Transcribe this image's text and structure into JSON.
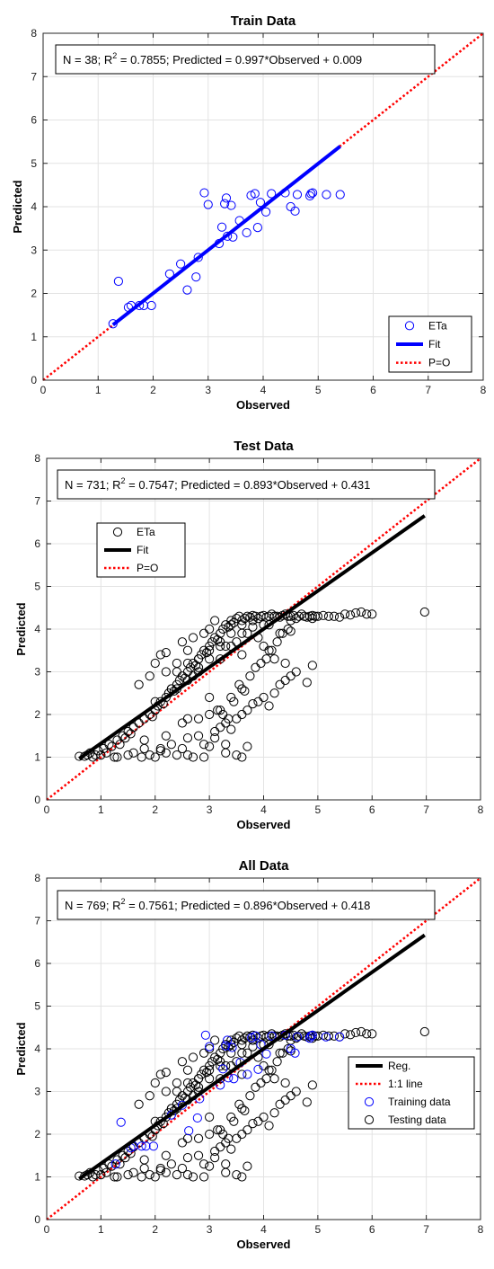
{
  "chart_data": [
    {
      "type": "scatter",
      "title": "Train Data",
      "xlabel": "Observed",
      "ylabel": "Predicted",
      "xlim": [
        0,
        8
      ],
      "ylim": [
        0,
        8
      ],
      "xticks": [
        "0",
        "1",
        "2",
        "3",
        "4",
        "5",
        "6",
        "7",
        "8"
      ],
      "yticks": [
        "0",
        "1",
        "2",
        "3",
        "4",
        "5",
        "6",
        "7",
        "8"
      ],
      "grid": true,
      "legend_position": "bottom-right",
      "stats": {
        "n_text": "N = 38;",
        "r_text": "R",
        "r_sup": "2",
        "r_value": " = 0.7855;",
        "eq_text": "Predicted = 0.997*Observed + 0.009"
      },
      "colors": {
        "points": "#0000ff",
        "fit": "#0000ff",
        "ref": "#ff0000"
      },
      "legend": [
        "ETa",
        "Fit",
        "P=O"
      ],
      "fit": {
        "slope": 0.997,
        "intercept": 0.009,
        "x_range": [
          1.27,
          5.4
        ]
      },
      "series": [
        {
          "name": "ETa",
          "x": [
            1.27,
            1.37,
            1.55,
            1.6,
            1.75,
            1.83,
            1.97,
            2.3,
            2.5,
            2.62,
            2.78,
            2.82,
            2.93,
            3.0,
            3.2,
            3.25,
            3.3,
            3.33,
            3.35,
            3.42,
            3.45,
            3.57,
            3.7,
            3.78,
            3.85,
            3.9,
            3.95,
            4.05,
            4.15,
            4.4,
            4.5,
            4.58,
            4.62,
            4.85,
            4.87,
            4.9,
            5.15,
            5.4
          ],
          "y": [
            1.3,
            2.28,
            1.68,
            1.72,
            1.72,
            1.72,
            1.72,
            2.45,
            2.68,
            2.08,
            2.38,
            2.83,
            4.32,
            4.05,
            3.15,
            3.53,
            4.07,
            4.2,
            3.32,
            4.03,
            3.3,
            3.68,
            3.4,
            4.26,
            4.3,
            3.52,
            4.1,
            3.88,
            4.3,
            4.32,
            4.0,
            3.9,
            4.28,
            4.25,
            4.3,
            4.32,
            4.28,
            4.28
          ]
        }
      ]
    },
    {
      "type": "scatter",
      "title": "Test Data",
      "xlabel": "Observed",
      "ylabel": "Predicted",
      "xlim": [
        0,
        8
      ],
      "ylim": [
        0,
        8
      ],
      "xticks": [
        "0",
        "1",
        "2",
        "3",
        "4",
        "5",
        "6",
        "7",
        "8"
      ],
      "yticks": [
        "0",
        "1",
        "2",
        "3",
        "4",
        "5",
        "6",
        "7",
        "8"
      ],
      "grid": true,
      "legend_position": "top-left",
      "stats": {
        "n_text": "N = 731;",
        "r_text": "R",
        "r_sup": "2",
        "r_value": " = 0.7547;",
        "eq_text": "Predicted = 0.893*Observed + 0.431"
      },
      "colors": {
        "points": "#000000",
        "fit": "#000000",
        "ref": "#ff0000"
      },
      "legend": [
        "ETa",
        "Fit",
        "P=O"
      ],
      "fit": {
        "slope": 0.893,
        "intercept": 0.431,
        "x_range": [
          0.6,
          6.97
        ]
      },
      "series": [
        {
          "name": "ETa",
          "x": [
            0.6,
            0.7,
            0.75,
            0.8,
            0.85,
            0.9,
            0.95,
            1.0,
            1.05,
            1.1,
            1.15,
            1.2,
            1.25,
            1.3,
            1.35,
            1.4,
            1.45,
            1.5,
            1.55,
            1.6,
            1.7,
            1.8,
            1.9,
            1.95,
            2.0,
            2.05,
            2.1,
            2.15,
            2.2,
            2.25,
            2.3,
            2.35,
            2.4,
            2.45,
            2.5,
            2.55,
            2.6,
            2.65,
            2.7,
            2.75,
            2.8,
            2.85,
            2.9,
            2.95,
            3.0,
            3.05,
            3.1,
            3.15,
            3.2,
            3.25,
            3.3,
            3.35,
            3.4,
            3.45,
            3.5,
            3.55,
            3.6,
            3.65,
            3.7,
            3.75,
            3.8,
            3.85,
            3.9,
            3.95,
            4.0,
            4.05,
            4.1,
            4.15,
            4.2,
            4.25,
            4.3,
            4.35,
            4.4,
            4.45,
            4.5,
            4.55,
            4.6,
            4.65,
            4.7,
            4.75,
            4.8,
            4.85,
            4.9,
            4.95,
            5.0,
            5.1,
            5.2,
            5.3,
            5.4,
            5.5,
            5.6,
            5.7,
            5.8,
            5.9,
            6.0,
            6.97,
            1.3,
            1.5,
            1.6,
            1.75,
            1.8,
            1.9,
            2.0,
            2.1,
            2.2,
            2.3,
            2.4,
            2.5,
            2.6,
            2.7,
            2.8,
            2.9,
            3.0,
            3.1,
            3.2,
            3.3,
            3.4,
            3.5,
            3.6,
            3.7,
            3.8,
            3.9,
            4.0,
            4.1,
            4.2,
            4.3,
            4.4,
            4.5,
            4.6,
            4.8,
            4.9,
            2.2,
            2.4,
            2.5,
            2.6,
            2.7,
            2.9,
            3.0,
            3.1,
            3.2,
            3.3,
            3.4,
            3.5,
            3.6,
            3.7,
            3.8,
            3.9,
            4.0,
            4.1,
            4.2,
            4.3,
            4.4,
            4.5,
            2.0,
            2.3,
            2.7,
            2.8,
            3.0,
            3.15,
            3.25,
            3.35,
            3.45,
            3.55,
            3.65,
            3.75,
            3.85,
            3.95,
            4.05,
            4.15,
            4.25,
            4.35,
            4.45,
            1.7,
            1.9,
            2.0,
            2.1,
            2.2,
            2.4,
            2.6,
            2.8,
            3.0,
            3.2,
            3.4,
            3.6,
            3.8,
            4.0,
            4.2,
            1.8,
            2.2,
            2.5,
            2.6,
            2.8,
            3.0,
            3.2,
            3.4,
            3.6,
            2.0,
            2.4,
            2.6,
            2.8,
            3.0,
            3.2,
            3.4,
            3.6,
            3.8,
            4.1,
            4.5,
            4.9,
            3.1,
            3.3,
            3.5,
            3.7,
            2.1,
            2.6,
            2.9,
            3.3,
            3.6
          ],
          "y": [
            1.02,
            1.02,
            1.05,
            1.1,
            1.0,
            1.05,
            1.15,
            1.05,
            1.2,
            1.1,
            1.3,
            1.25,
            1.0,
            1.4,
            1.3,
            1.5,
            1.45,
            1.6,
            1.55,
            1.7,
            1.8,
            1.9,
            2.0,
            1.95,
            2.1,
            2.2,
            2.3,
            2.25,
            2.4,
            2.5,
            2.6,
            2.55,
            2.7,
            2.8,
            2.9,
            2.85,
            3.0,
            3.1,
            3.2,
            3.15,
            3.3,
            3.4,
            3.5,
            3.45,
            3.6,
            3.7,
            3.8,
            3.75,
            3.9,
            4.0,
            4.1,
            4.05,
            4.2,
            4.15,
            4.25,
            4.3,
            4.2,
            4.25,
            4.3,
            4.28,
            4.32,
            4.3,
            4.25,
            4.3,
            4.32,
            4.28,
            4.3,
            4.35,
            4.3,
            4.3,
            4.28,
            4.32,
            4.35,
            4.3,
            4.3,
            4.32,
            4.25,
            4.3,
            4.35,
            4.3,
            4.28,
            4.3,
            4.32,
            4.3,
            4.3,
            4.32,
            4.3,
            4.3,
            4.28,
            4.35,
            4.33,
            4.38,
            4.4,
            4.35,
            4.35,
            4.4,
            1.0,
            1.05,
            1.1,
            1.0,
            1.2,
            1.05,
            1.0,
            1.15,
            1.1,
            1.3,
            1.05,
            1.2,
            1.45,
            1.0,
            1.5,
            1.3,
            1.25,
            1.6,
            1.7,
            1.8,
            1.65,
            1.9,
            2.0,
            2.1,
            2.25,
            2.3,
            2.4,
            2.2,
            2.5,
            2.7,
            2.8,
            2.9,
            3.0,
            2.75,
            3.15,
            3.45,
            3.2,
            3.7,
            3.5,
            3.8,
            3.9,
            4.0,
            4.2,
            3.3,
            3.6,
            4.1,
            3.7,
            3.4,
            3.9,
            4.2,
            3.8,
            3.6,
            3.5,
            3.3,
            3.9,
            3.2,
            3.95,
            2.3,
            2.6,
            2.9,
            3.0,
            2.4,
            2.1,
            2.0,
            1.9,
            2.3,
            2.7,
            2.55,
            2.9,
            3.1,
            3.2,
            3.3,
            3.5,
            3.7,
            3.9,
            4.0,
            2.7,
            2.9,
            3.2,
            3.4,
            3.0,
            2.6,
            2.8,
            3.1,
            3.3,
            3.6,
            3.9,
            4.1,
            4.2,
            4.1,
            4.3,
            1.4,
            1.5,
            1.8,
            1.9,
            1.9,
            2.0,
            2.1,
            2.4,
            2.6,
            2.1,
            3.0,
            3.2,
            3.3,
            3.5,
            3.7,
            3.6,
            3.9,
            4.05,
            4.1,
            4.2,
            4.25,
            1.45,
            1.3,
            1.05,
            1.25,
            1.2,
            1.05,
            1.0,
            1.1,
            1.0
          ]
        }
      ]
    },
    {
      "type": "scatter",
      "title": "All Data",
      "xlabel": "Observed",
      "ylabel": "Predicted",
      "xlim": [
        0,
        8
      ],
      "ylim": [
        0,
        8
      ],
      "xticks": [
        "0",
        "1",
        "2",
        "3",
        "4",
        "5",
        "6",
        "7",
        "8"
      ],
      "yticks": [
        "0",
        "1",
        "2",
        "3",
        "4",
        "5",
        "6",
        "7",
        "8"
      ],
      "grid": true,
      "legend_position": "bottom-right",
      "stats": {
        "n_text": "N = 769;",
        "r_text": "R",
        "r_sup": "2",
        "r_value": " = 0.7561;",
        "eq_text": "Predicted = 0.896*Observed + 0.418"
      },
      "colors": {
        "points_test": "#000000",
        "points_train": "#0000ff",
        "fit": "#000000",
        "ref": "#ff0000"
      },
      "legend": [
        "Reg.",
        "1:1 line",
        "Training data",
        "Testing data"
      ],
      "fit": {
        "slope": 0.896,
        "intercept": 0.418,
        "x_range": [
          0.6,
          6.97
        ]
      }
    }
  ]
}
